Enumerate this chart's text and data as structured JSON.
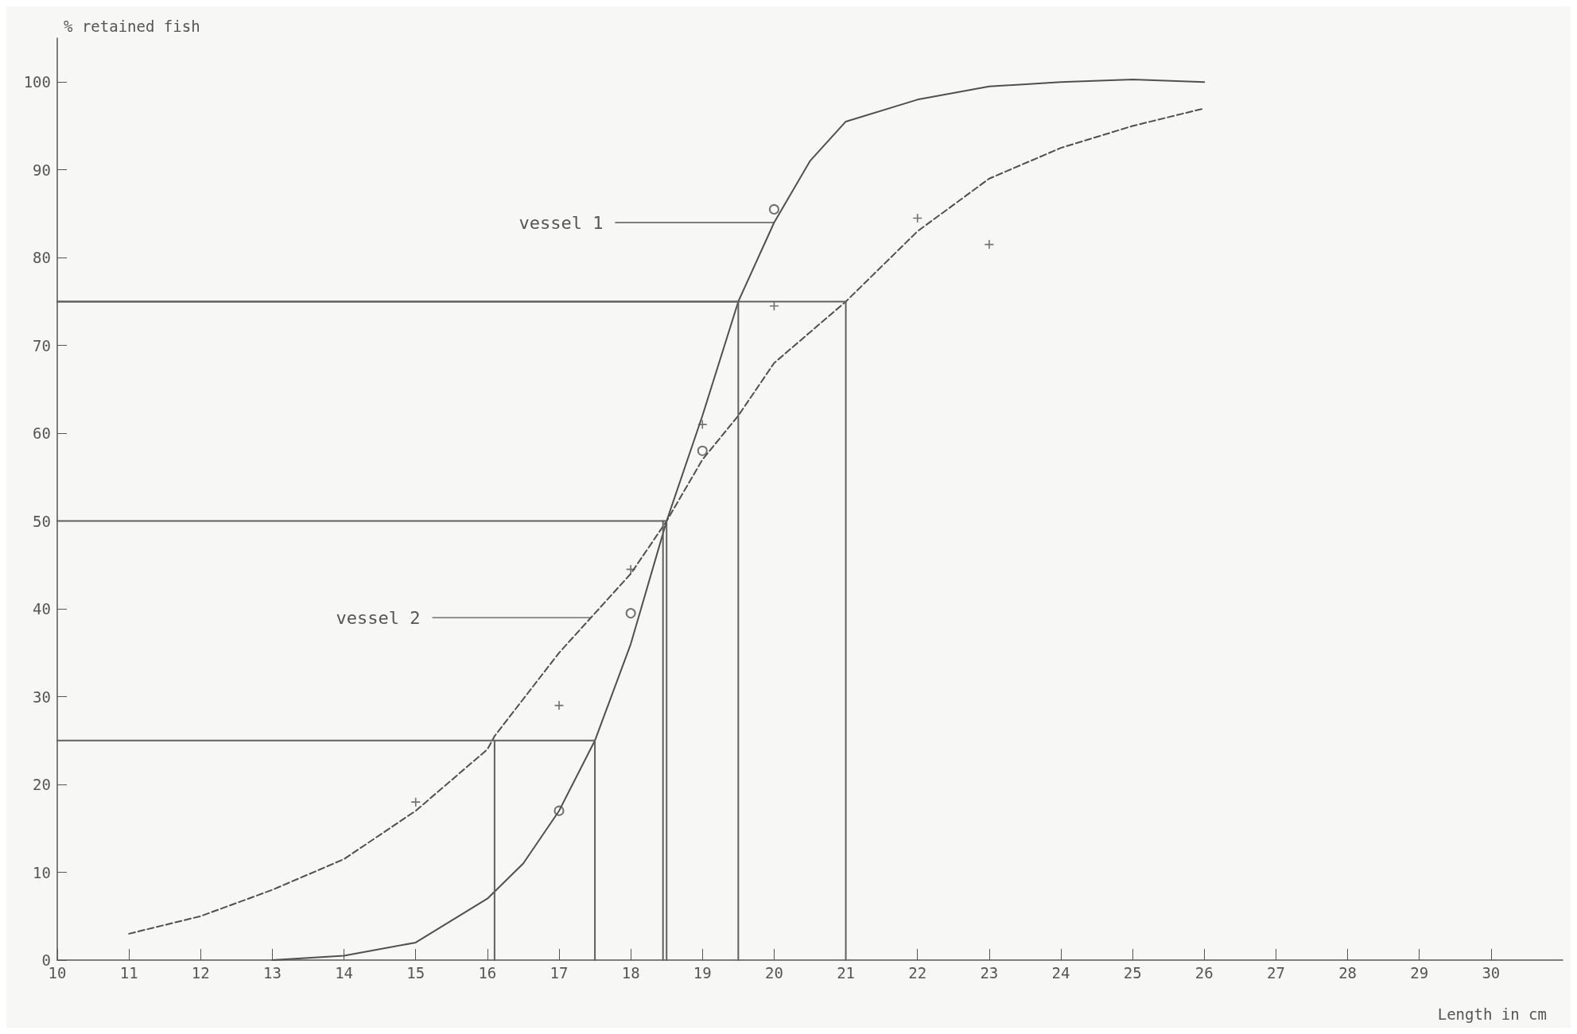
{
  "chart_data": {
    "type": "line",
    "xlabel": "Length in cm",
    "ylabel": "% retained fish",
    "xlim": [
      10,
      31
    ],
    "xticks": [
      10,
      11,
      12,
      13,
      14,
      15,
      16,
      17,
      18,
      19,
      20,
      21,
      22,
      23,
      24,
      25,
      26,
      27,
      28,
      29,
      30
    ],
    "ylim": [
      0,
      105
    ],
    "yticks": [
      0,
      10,
      20,
      30,
      40,
      50,
      60,
      70,
      80,
      90,
      100
    ],
    "grid": false,
    "annotations": [
      {
        "text": "vessel 1",
        "x": 20,
        "y": 84
      },
      {
        "text": "vessel 2",
        "x": 17.45,
        "y": 39
      }
    ],
    "series": [
      {
        "color": "#505050",
        "line_style": "solid",
        "marker": "none",
        "x": [
          13,
          14,
          15,
          16,
          16.5,
          17,
          17.5,
          18,
          18.5,
          19,
          19.5,
          20,
          20.5,
          21,
          22,
          23,
          24,
          25,
          26
        ],
        "values": [
          0,
          0.5,
          2,
          7,
          11,
          17,
          25,
          36,
          50,
          62,
          75,
          84,
          91,
          95.5,
          98,
          99.5,
          100,
          100.3,
          100
        ]
      },
      {
        "color": "#505050",
        "line_style": "dashed",
        "marker": "none",
        "x": [
          11,
          12,
          13,
          14,
          15,
          16,
          16.1,
          17,
          18,
          18.5,
          19,
          19.5,
          20,
          21,
          22,
          23,
          24,
          25,
          26
        ],
        "values": [
          3,
          5,
          8,
          11.5,
          17,
          24,
          25.5,
          35,
          44,
          50,
          57,
          62,
          68,
          75,
          83,
          89,
          92.5,
          95,
          97
        ]
      },
      {
        "type": "scatter",
        "color": "#505050",
        "marker": "circle",
        "x": [
          17,
          18,
          19,
          20
        ],
        "values": [
          17,
          39.5,
          58,
          85.5
        ]
      },
      {
        "type": "scatter",
        "color": "#505050",
        "marker": "cross",
        "x": [
          15,
          17,
          18,
          19,
          20,
          22,
          23
        ],
        "values": [
          18,
          29,
          44.5,
          61,
          74.5,
          84.5,
          81.5
        ]
      },
      {
        "type": "line",
        "color": "#606060",
        "line_style": "solid",
        "marker": "none",
        "x": [
          10,
          21,
          21
        ],
        "values": [
          75,
          75,
          0
        ]
      },
      {
        "type": "line",
        "color": "#606060",
        "line_style": "solid",
        "marker": "none",
        "x": [
          10,
          19.5,
          19.5
        ],
        "values": [
          75,
          75,
          0
        ]
      },
      {
        "type": "line",
        "color": "#606060",
        "line_style": "solid",
        "marker": "none",
        "x": [
          10,
          18.5,
          18.5
        ],
        "values": [
          50,
          50,
          0
        ]
      },
      {
        "type": "line",
        "color": "#606060",
        "line_style": "solid",
        "marker": "none",
        "x": [
          18.45,
          18.45
        ],
        "values": [
          50,
          0
        ]
      },
      {
        "type": "line",
        "color": "#606060",
        "line_style": "solid",
        "marker": "none",
        "x": [
          10,
          17.5,
          17.5
        ],
        "values": [
          25,
          25,
          0
        ]
      },
      {
        "type": "line",
        "color": "#606060",
        "line_style": "solid",
        "marker": "none",
        "x": [
          16.1,
          16.1
        ],
        "values": [
          25,
          0
        ]
      }
    ]
  }
}
